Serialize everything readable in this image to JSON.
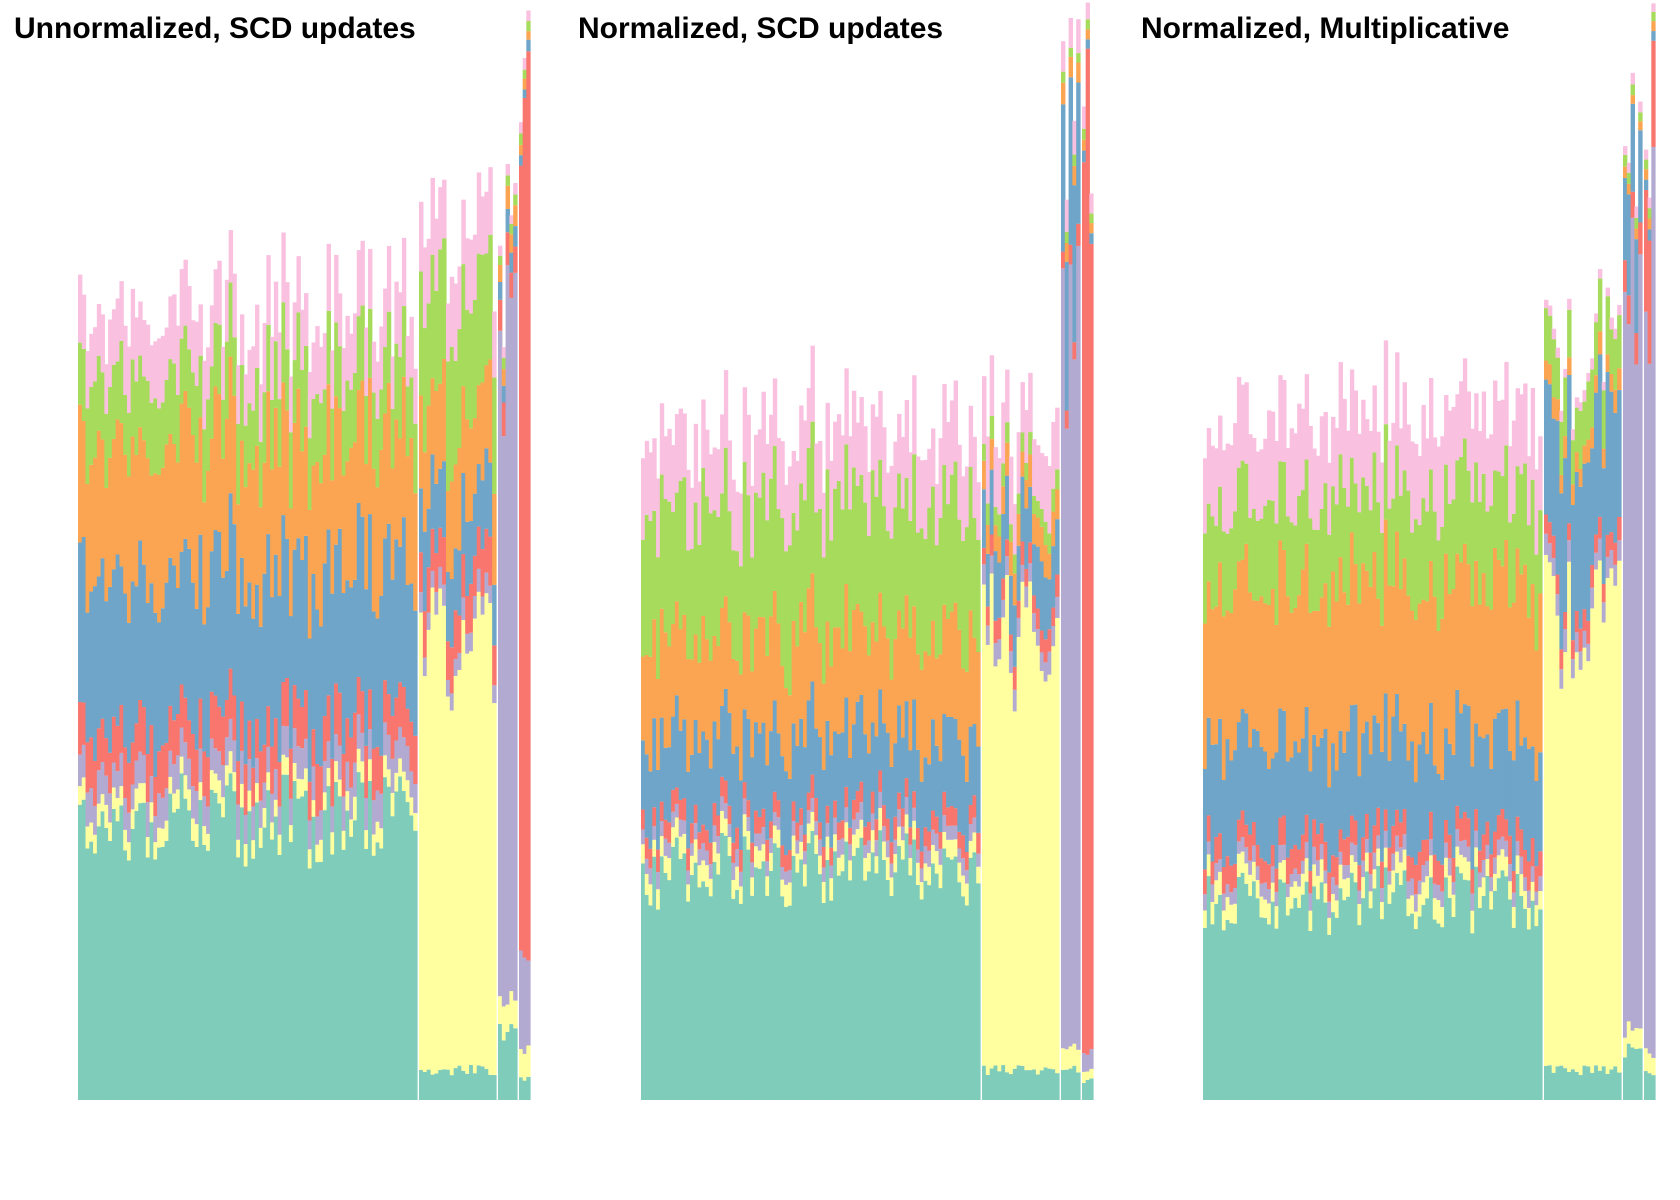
{
  "chart_data": [
    {
      "type": "area",
      "title": "Unnormalized, SCD updates",
      "colors": [
        "#7fccba",
        "#ffffa0",
        "#b3aad2",
        "#f8766d",
        "#6ea5c8",
        "#fba552",
        "#a6db5c",
        "#f9c0e0"
      ],
      "groups": [
        {
          "samples": 90,
          "bands": [
            0.28,
            0.02,
            0.03,
            0.045,
            0.15,
            0.13,
            0.07,
            0.06
          ]
        },
        {
          "samples": 20,
          "bands": [
            0.03,
            0.43,
            0.02,
            0.045,
            0.07,
            0.09,
            0.12,
            0.07
          ]
        },
        {
          "samples": 5,
          "bands": [
            0.07,
            0.03,
            0.63,
            0.03,
            0.02,
            0.02,
            0.01,
            0.01
          ]
        },
        {
          "samples": 3,
          "bands": [
            0.02,
            0.03,
            0.1,
            0.82,
            0.01,
            0.01,
            0.01,
            0.01
          ]
        }
      ]
    },
    {
      "type": "area",
      "title": "Normalized, SCD updates",
      "colors": [
        "#7fccba",
        "#ffffa0",
        "#b3aad2",
        "#f8766d",
        "#6ea5c8",
        "#fba552",
        "#a6db5c",
        "#f9c0e0"
      ],
      "groups": [
        {
          "samples": 90,
          "bands": [
            0.23,
            0.02,
            0.015,
            0.02,
            0.08,
            0.1,
            0.13,
            0.07
          ]
        },
        {
          "samples": 20,
          "bands": [
            0.03,
            0.43,
            0.02,
            0.02,
            0.06,
            0.03,
            0.02,
            0.06
          ]
        },
        {
          "samples": 5,
          "bands": [
            0.03,
            0.02,
            0.7,
            0.02,
            0.17,
            0.02,
            0.01,
            0.03
          ]
        },
        {
          "samples": 3,
          "bands": [
            0.02,
            0.01,
            0.02,
            0.89,
            0.01,
            0.01,
            0.01,
            0.02
          ]
        }
      ]
    },
    {
      "type": "area",
      "title": "Normalized, Multiplicative",
      "colors": [
        "#7fccba",
        "#ffffa0",
        "#b3aad2",
        "#f8766d",
        "#6ea5c8",
        "#fba552",
        "#a6db5c",
        "#f9c0e0"
      ],
      "groups": [
        {
          "samples": 90,
          "bands": [
            0.2,
            0.02,
            0.015,
            0.025,
            0.1,
            0.15,
            0.09,
            0.08
          ]
        },
        {
          "samples": 20,
          "bands": [
            0.03,
            0.44,
            0.02,
            0.02,
            0.14,
            0.02,
            0.05,
            0.01
          ]
        },
        {
          "samples": 5,
          "bands": [
            0.05,
            0.02,
            0.74,
            0.03,
            0.09,
            0.01,
            0.01,
            0.01
          ]
        },
        {
          "samples": 3,
          "bands": [
            0.03,
            0.02,
            0.78,
            0.12,
            0.01,
            0.01,
            0.01,
            0.01
          ]
        }
      ]
    }
  ]
}
